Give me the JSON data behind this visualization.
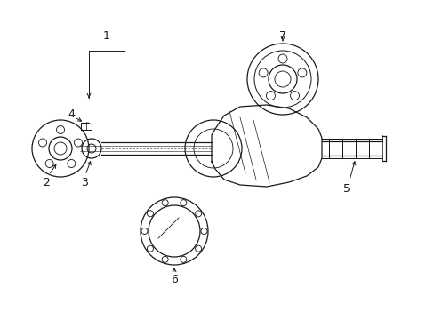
{
  "bg_color": "#ffffff",
  "line_color": "#1a1a1a",
  "figsize": [
    4.89,
    3.6
  ],
  "dpi": 100,
  "lw_main": 0.9,
  "lw_thin": 0.5,
  "fontsize": 8
}
